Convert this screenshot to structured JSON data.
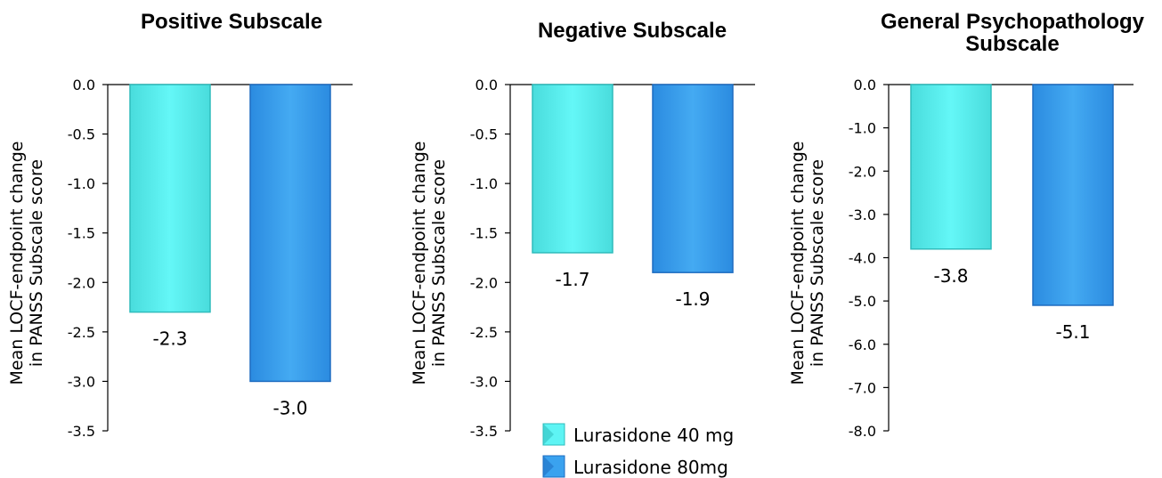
{
  "chart_data": [
    {
      "type": "bar",
      "title": "Positive Subscale",
      "ylabel": "Mean LOCF-endpoint change in PANSS Subscale score",
      "ylim": [
        -3.5,
        0.0
      ],
      "yticks": [
        "0.0",
        "-0.5",
        "-1.0",
        "-1.5",
        "-2.0",
        "-2.5",
        "-3.0",
        "-3.5"
      ],
      "series": [
        {
          "name": "Lurasidone 40 mg",
          "values": [
            -2.3
          ],
          "label": "-2.3"
        },
        {
          "name": "Lurasidone 80mg",
          "values": [
            -3.0
          ],
          "label": "-3.0"
        }
      ]
    },
    {
      "type": "bar",
      "title": "Negative Subscale",
      "ylabel": "Mean LOCF-endpoint change in PANSS Subscale score",
      "ylim": [
        -3.5,
        0.0
      ],
      "yticks": [
        "0.0",
        "-0.5",
        "-1.0",
        "-1.5",
        "-2.0",
        "-2.5",
        "-3.0",
        "-3.5"
      ],
      "series": [
        {
          "name": "Lurasidone 40 mg",
          "values": [
            -1.7
          ],
          "label": "-1.7"
        },
        {
          "name": "Lurasidone 80mg",
          "values": [
            -1.9
          ],
          "label": "-1.9"
        }
      ]
    },
    {
      "type": "bar",
      "title": "General Psychopathology Subscale",
      "title_lines": [
        "General Psychopathology",
        "Subscale"
      ],
      "ylabel": "Mean LOCF-endpoint change in PANSS Subscale score",
      "ylim": [
        -8.0,
        0.0
      ],
      "yticks": [
        "0.0",
        "-1.0",
        "-2.0",
        "-3.0",
        "-4.0",
        "-5.0",
        "-6.0",
        "-7.0",
        "-8.0"
      ],
      "series": [
        {
          "name": "Lurasidone 40 mg",
          "values": [
            -3.8
          ],
          "label": "-3.8"
        },
        {
          "name": "Lurasidone 80mg",
          "values": [
            -5.1
          ],
          "label": "-5.1"
        }
      ]
    }
  ],
  "legend": {
    "placement": "bottom-center",
    "items": [
      {
        "label": "Lurasidone 40 mg",
        "color": "#5ef4f4"
      },
      {
        "label": "Lurasidone 80mg",
        "color": "#3aa2ef"
      }
    ]
  },
  "colors": {
    "series_40mg": "#5ef4f4",
    "series_40mg_edge": "#2fbcbc",
    "series_80mg": "#3aa2ef",
    "series_80mg_edge": "#1e6cc0"
  }
}
